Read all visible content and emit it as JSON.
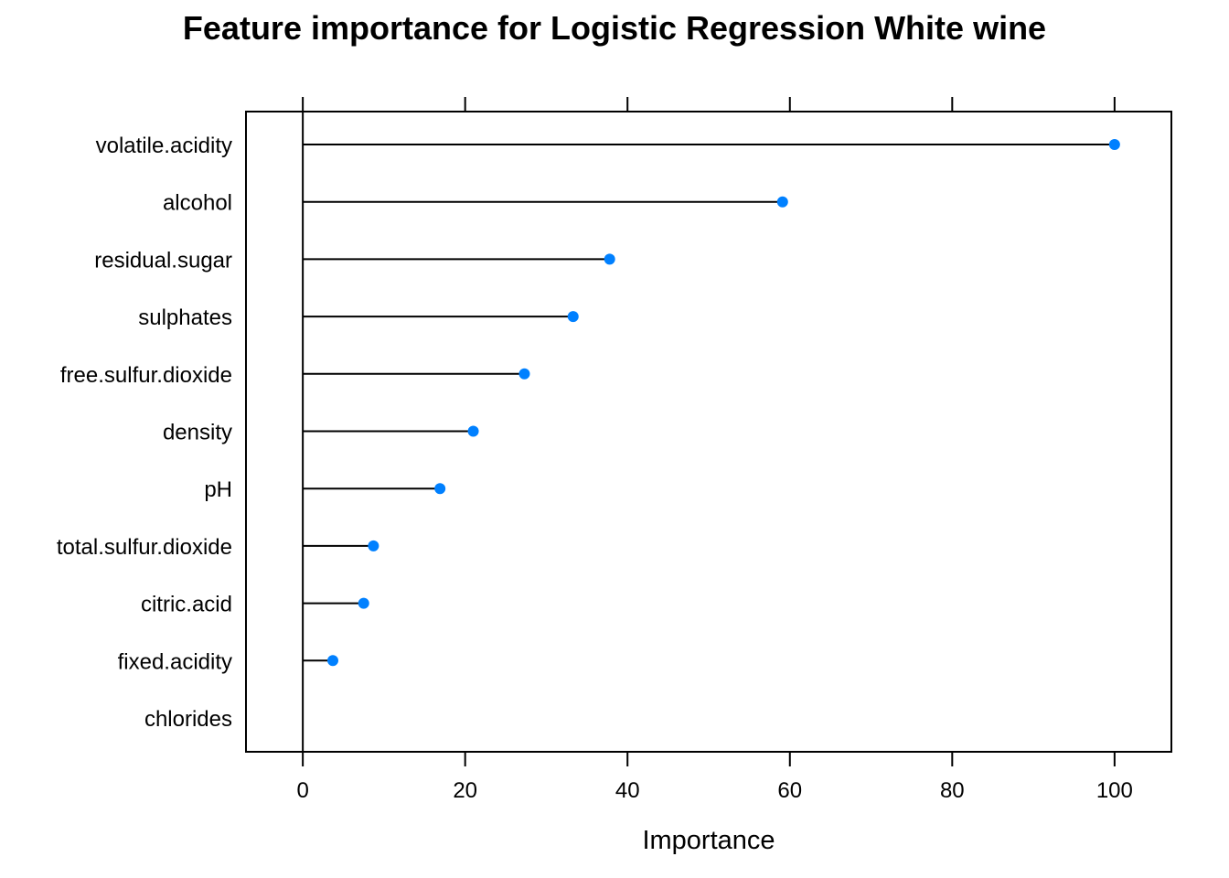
{
  "colors": {
    "point": "#0080ff",
    "line": "#000000",
    "frame": "#000000",
    "background": "#ffffff"
  },
  "chart_data": {
    "type": "dot",
    "title": "Feature importance for Logistic Regression White wine",
    "xlabel": "Importance",
    "ylabel": "",
    "xlim": [
      -7,
      107
    ],
    "xticks": [
      0,
      20,
      40,
      60,
      80,
      100
    ],
    "grid": false,
    "categories": [
      "volatile.acidity",
      "alcohol",
      "residual.sugar",
      "sulphates",
      "free.sulfur.dioxide",
      "density",
      "pH",
      "total.sulfur.dioxide",
      "citric.acid",
      "fixed.acidity",
      "chlorides"
    ],
    "values": [
      100,
      59.1,
      37.8,
      33.3,
      27.3,
      21.0,
      16.9,
      8.7,
      7.5,
      3.7,
      0
    ]
  }
}
